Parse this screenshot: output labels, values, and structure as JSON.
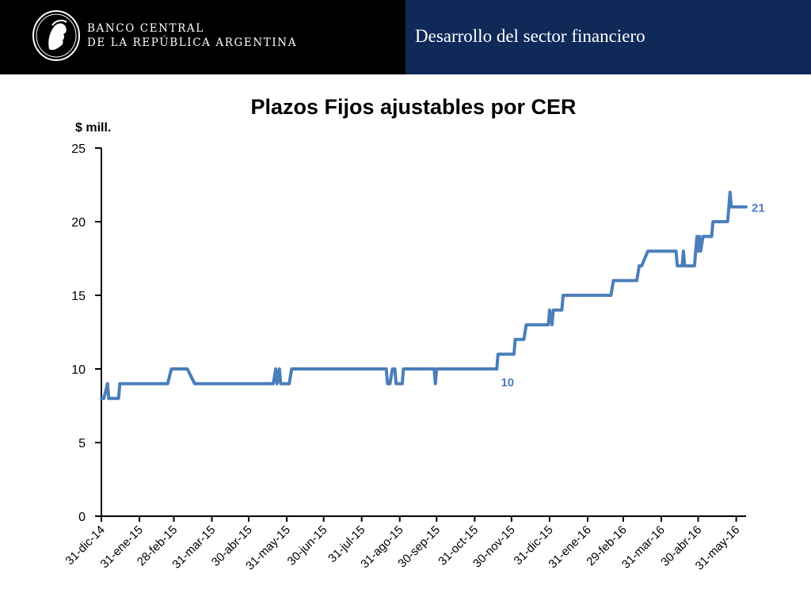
{
  "header": {
    "bank_name_line1": "BANCO CENTRAL",
    "bank_name_line2": "DE LA REPÚBLICA ARGENTINA",
    "section_title": "Desarrollo del sector financiero",
    "logo_icon": "bcra-seal-icon"
  },
  "colors": {
    "header_left": "#000000",
    "header_right": "#0f2a59",
    "series": "#4a7ebb",
    "label": "#4a7ebb",
    "axis": "#000000"
  },
  "chart_data": {
    "type": "line",
    "title": "Plazos Fijos ajustables por CER",
    "ylabel": "$ mill.",
    "xlabel": "",
    "ylim": [
      0,
      25
    ],
    "yticks": [
      0,
      5,
      10,
      15,
      20,
      25
    ],
    "xticks": [
      "31-dic-14",
      "31-ene-15",
      "28-feb-15",
      "31-mar-15",
      "30-abr-15",
      "31-may-15",
      "30-jun-15",
      "31-jul-15",
      "31-ago-15",
      "30-sep-15",
      "31-oct-15",
      "30-nov-15",
      "31-dic-15",
      "31-ene-16",
      "29-feb-16",
      "31-mar-16",
      "30-abr-16",
      "31-may-16"
    ],
    "grid": false,
    "legend": "none",
    "series": [
      {
        "points": [
          [
            "2014-12-31",
            8
          ],
          [
            "2015-01-02",
            8
          ],
          [
            "2015-01-05",
            9
          ],
          [
            "2015-01-06",
            8
          ],
          [
            "2015-01-14",
            8
          ],
          [
            "2015-01-15",
            9
          ],
          [
            "2015-02-23",
            9
          ],
          [
            "2015-02-26",
            10
          ],
          [
            "2015-03-11",
            10
          ],
          [
            "2015-03-17",
            9
          ],
          [
            "2015-05-20",
            9
          ],
          [
            "2015-05-22",
            10
          ],
          [
            "2015-05-23",
            9
          ],
          [
            "2015-05-25",
            10
          ],
          [
            "2015-05-26",
            9
          ],
          [
            "2015-06-02",
            9
          ],
          [
            "2015-06-04",
            10
          ],
          [
            "2015-08-20",
            10
          ],
          [
            "2015-08-21",
            9
          ],
          [
            "2015-08-23",
            9
          ],
          [
            "2015-08-25",
            10
          ],
          [
            "2015-08-27",
            10
          ],
          [
            "2015-08-28",
            9
          ],
          [
            "2015-09-02",
            9
          ],
          [
            "2015-09-03",
            10
          ],
          [
            "2015-09-28",
            10
          ],
          [
            "2015-09-29",
            9
          ],
          [
            "2015-09-30",
            10
          ],
          [
            "2015-11-18",
            10
          ],
          [
            "2015-11-19",
            11
          ],
          [
            "2015-12-02",
            11
          ],
          [
            "2015-12-03",
            12
          ],
          [
            "2015-12-10",
            12
          ],
          [
            "2015-12-12",
            13
          ],
          [
            "2015-12-30",
            13
          ],
          [
            "2015-12-31",
            14
          ],
          [
            "2016-01-02",
            13
          ],
          [
            "2016-01-03",
            14
          ],
          [
            "2016-01-10",
            14
          ],
          [
            "2016-01-11",
            15
          ],
          [
            "2016-02-19",
            15
          ],
          [
            "2016-02-21",
            16
          ],
          [
            "2016-03-11",
            16
          ],
          [
            "2016-03-13",
            17
          ],
          [
            "2016-03-15",
            17
          ],
          [
            "2016-03-20",
            18
          ],
          [
            "2016-04-12",
            18
          ],
          [
            "2016-04-13",
            17
          ],
          [
            "2016-04-17",
            17
          ],
          [
            "2016-04-18",
            18
          ],
          [
            "2016-04-19",
            17
          ],
          [
            "2016-04-27",
            17
          ],
          [
            "2016-04-28",
            18
          ],
          [
            "2016-04-29",
            19
          ],
          [
            "2016-04-30",
            18
          ],
          [
            "2016-05-01",
            19
          ],
          [
            "2016-05-02",
            18
          ],
          [
            "2016-05-04",
            19
          ],
          [
            "2016-05-11",
            19
          ],
          [
            "2016-05-12",
            20
          ],
          [
            "2016-05-24",
            20
          ],
          [
            "2016-05-25",
            21
          ],
          [
            "2016-05-26",
            22
          ],
          [
            "2016-05-27",
            21
          ],
          [
            "2016-06-08",
            21
          ]
        ]
      }
    ],
    "annotations": [
      {
        "text": "10",
        "x": "2015-11-19",
        "y": 10,
        "position": "below"
      },
      {
        "text": "21",
        "x": "2016-06-08",
        "y": 21,
        "position": "right"
      }
    ]
  }
}
